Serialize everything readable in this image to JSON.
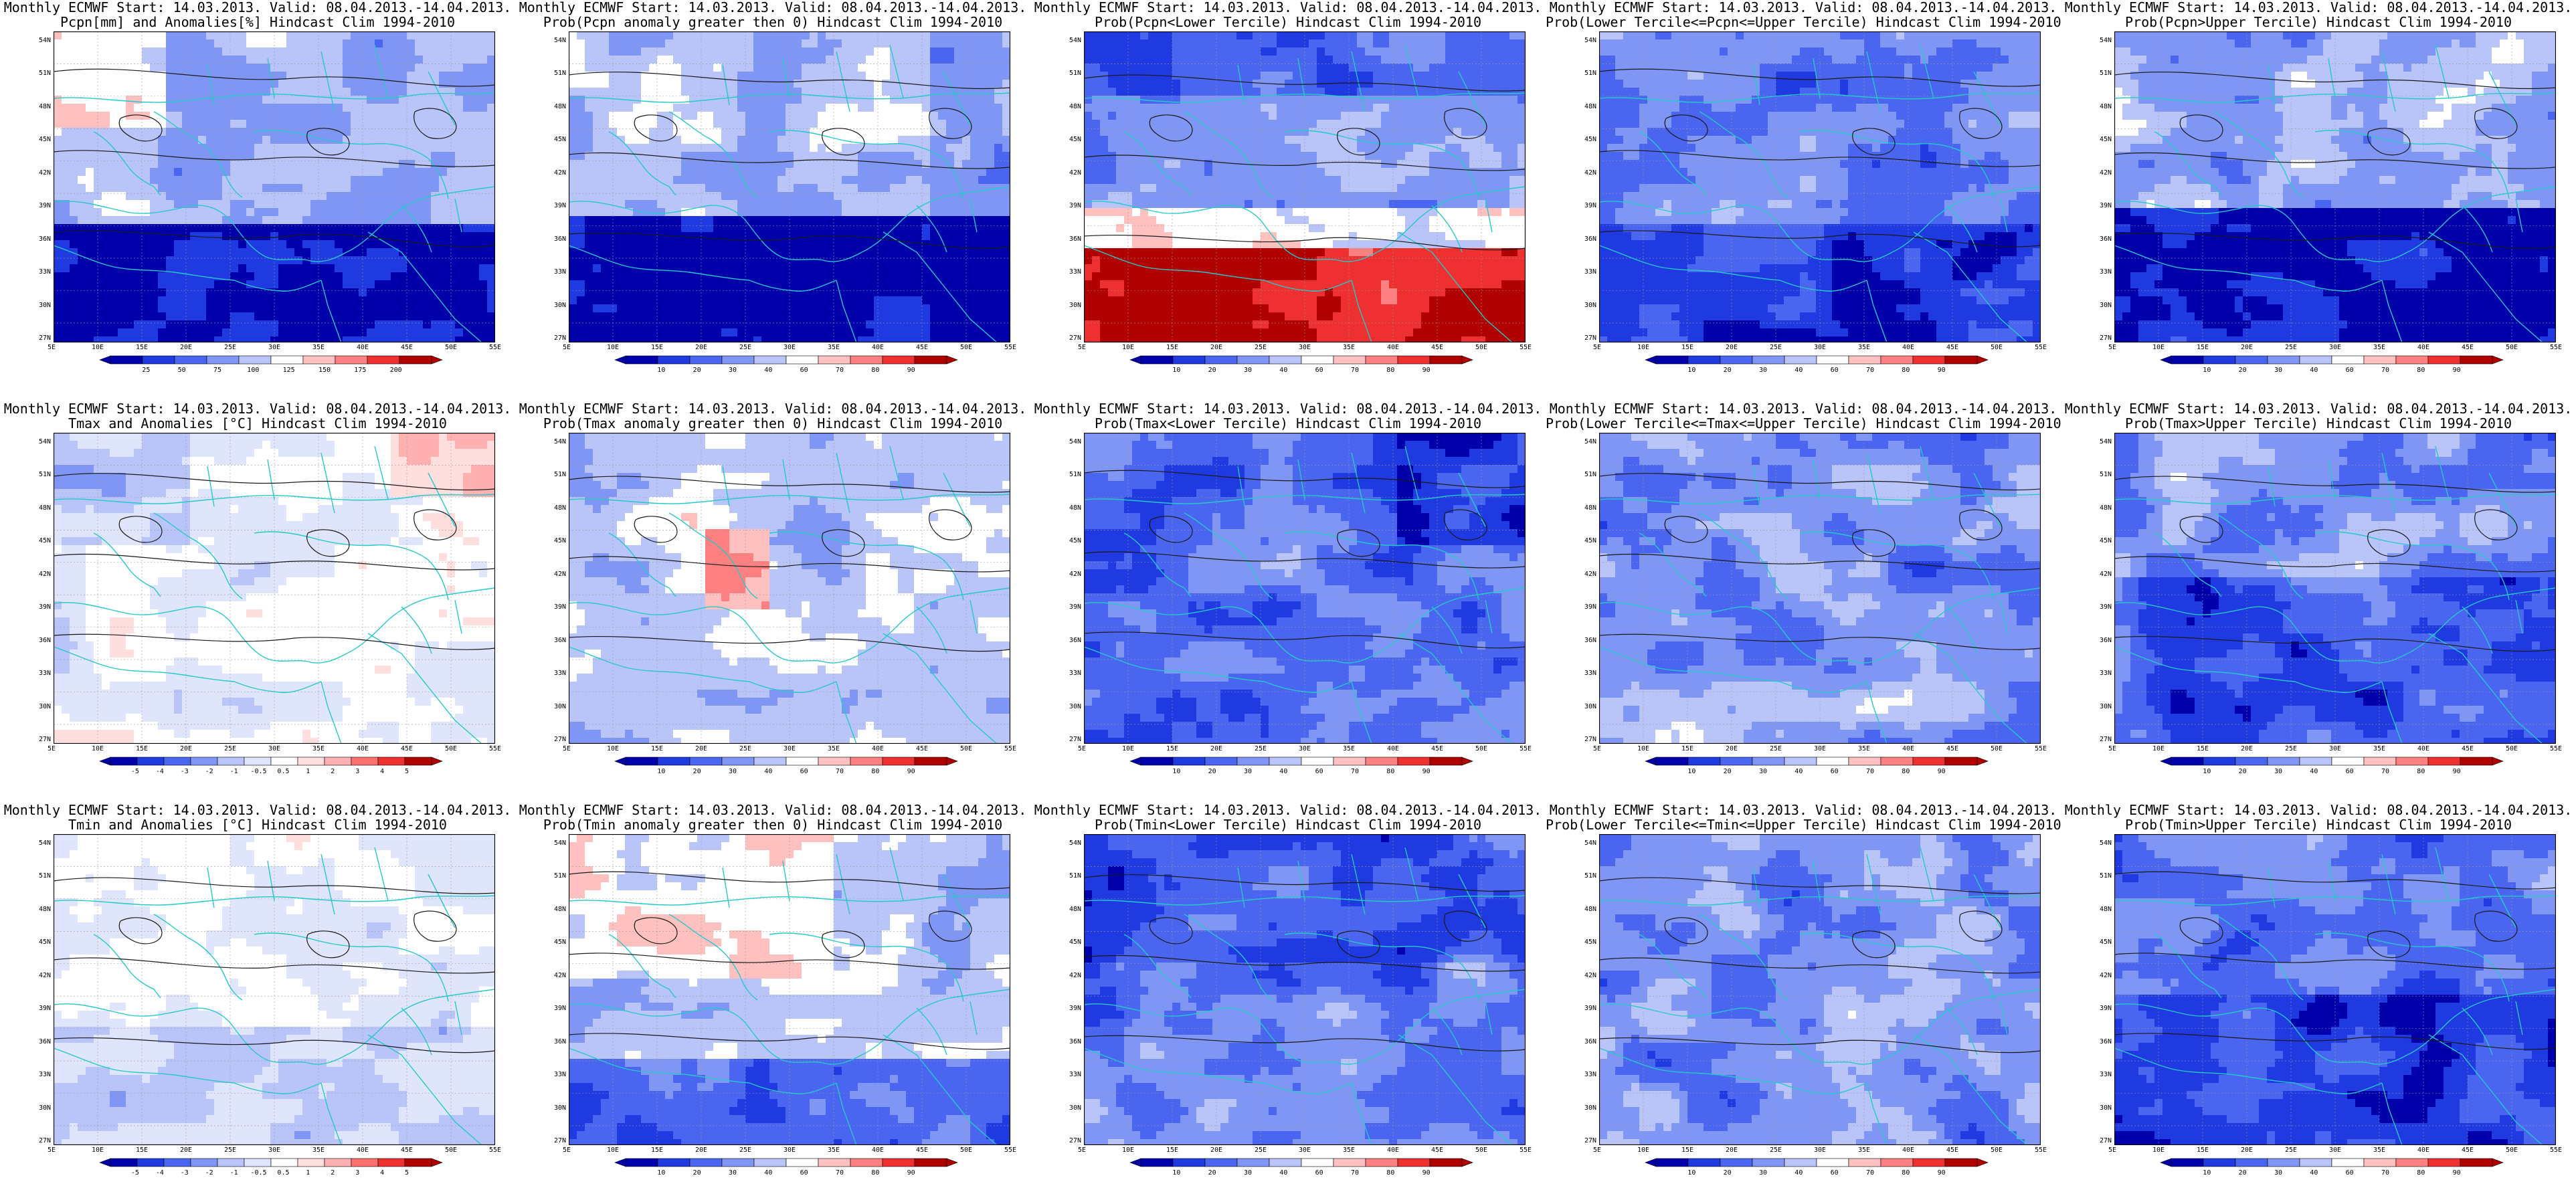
{
  "header_line": "Monthly ECMWF Start: 14.03.2013. Valid: 08.04.2013.-14.04.2013.",
  "lat_labels": [
    "54N",
    "51N",
    "48N",
    "45N",
    "42N",
    "39N",
    "36N",
    "33N",
    "30N",
    "27N"
  ],
  "lon_labels": [
    "5E",
    "10E",
    "15E",
    "20E",
    "25E",
    "30E",
    "35E",
    "40E",
    "45E",
    "50E",
    "55E"
  ],
  "colors": {
    "coast": "#24c9c9",
    "contour": "#1a1a1a",
    "prob_scale": [
      "#0000aa",
      "#1f3ae0",
      "#4a66f0",
      "#7f96f5",
      "#b9c4f8",
      "#ffffff",
      "#ffc0c0",
      "#ff8080",
      "#ee3030",
      "#b00000"
    ],
    "anom_scale": [
      "#0000aa",
      "#1f3ae0",
      "#4a66f0",
      "#7f96f5",
      "#b9c4f8",
      "#dfe5fb",
      "#ffffff",
      "#ffdede",
      "#ffb0b0",
      "#ff7070",
      "#ee3030",
      "#b00000"
    ]
  },
  "colorbars": {
    "precip": [
      "25",
      "50",
      "75",
      "100",
      "125",
      "150",
      "175",
      "200"
    ],
    "prob": [
      "10",
      "20",
      "30",
      "40",
      "60",
      "70",
      "80",
      "90"
    ],
    "anom": [
      "-5",
      "-4",
      "-3",
      "-2",
      "-1",
      "-0.5",
      "0.5",
      "1",
      "2",
      "3",
      "4",
      "5"
    ]
  },
  "rows": [
    [
      {
        "title": "Pcpn[mm] and Anomalies[%] Hindcast Clim 1994-2010",
        "bar": "precip",
        "pattern": "precip_anom"
      },
      {
        "title": "Prob(Pcpn anomaly greater then 0) Hindcast Clim 1994-2010",
        "bar": "prob",
        "pattern": "precip_prob"
      },
      {
        "title": "Prob(Pcpn<Lower Tercile) Hindcast Clim 1994-2010",
        "bar": "prob",
        "pattern": "precip_lower"
      },
      {
        "title": "Prob(Lower Tercile<=Pcpn<=Upper Tercile) Hindcast Clim 1994-2010",
        "bar": "prob",
        "pattern": "precip_mid"
      },
      {
        "title": "Prob(Pcpn>Upper Tercile) Hindcast Clim 1994-2010",
        "bar": "prob",
        "pattern": "precip_upper"
      }
    ],
    [
      {
        "title": "Tmax and Anomalies [°C] Hindcast Clim 1994-2010",
        "bar": "anom",
        "pattern": "tmax_anom"
      },
      {
        "title": "Prob(Tmax anomaly greater then 0) Hindcast Clim 1994-2010",
        "bar": "prob",
        "pattern": "tmax_prob"
      },
      {
        "title": "Prob(Tmax<Lower Tercile) Hindcast Clim 1994-2010",
        "bar": "prob",
        "pattern": "tmax_lower"
      },
      {
        "title": "Prob(Lower Tercile<=Tmax<=Upper Tercile) Hindcast Clim 1994-2010",
        "bar": "prob",
        "pattern": "tmax_mid"
      },
      {
        "title": "Prob(Tmax>Upper Tercile) Hindcast Clim 1994-2010",
        "bar": "prob",
        "pattern": "tmax_upper"
      }
    ],
    [
      {
        "title": "Tmin and Anomalies [°C] Hindcast Clim 1994-2010",
        "bar": "anom",
        "pattern": "tmin_anom"
      },
      {
        "title": "Prob(Tmin anomaly greater then 0) Hindcast Clim 1994-2010",
        "bar": "prob",
        "pattern": "tmin_prob"
      },
      {
        "title": "Prob(Tmin<Lower Tercile) Hindcast Clim 1994-2010",
        "bar": "prob",
        "pattern": "tmin_lower"
      },
      {
        "title": "Prob(Lower Tercile<=Tmin<=Upper Tercile) Hindcast Clim 1994-2010",
        "bar": "prob",
        "pattern": "tmin_mid"
      },
      {
        "title": "Prob(Tmin>Upper Tercile) Hindcast Clim 1994-2010",
        "bar": "prob",
        "pattern": "tmin_upper"
      }
    ]
  ]
}
